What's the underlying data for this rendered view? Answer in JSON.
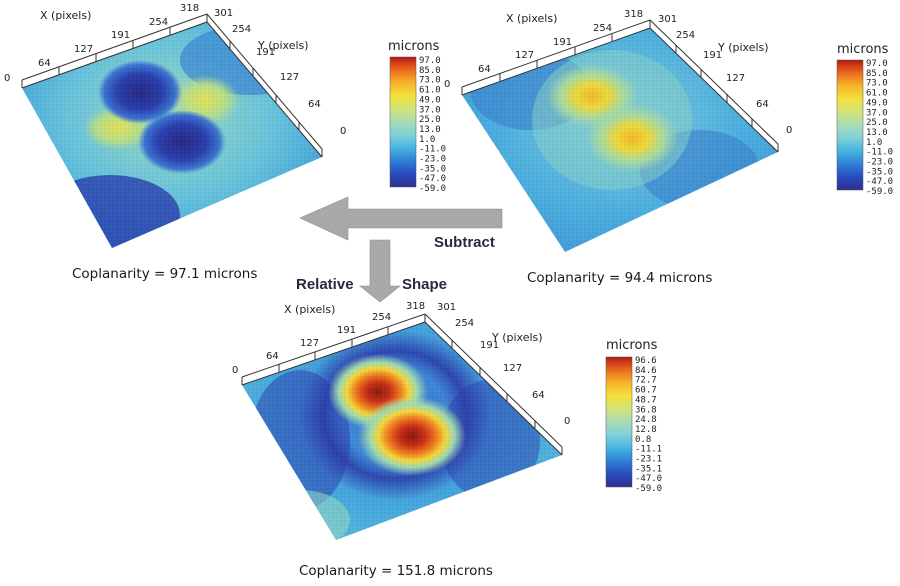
{
  "plots": [
    {
      "id": "top-left",
      "x_axis_title": "X (pixels)",
      "y_axis_title": "Y (pixels)",
      "x_ticks": [
        "0",
        "64",
        "127",
        "191",
        "254",
        "318"
      ],
      "y_ticks": [
        "301",
        "254",
        "191",
        "127",
        "64",
        "0"
      ],
      "colorbar_title": "microns",
      "colorbar_ticks": [
        "97.0",
        "85.0",
        "73.0",
        "61.0",
        "49.0",
        "37.0",
        "25.0",
        "13.0",
        "1.0",
        "-11.0",
        "-23.0",
        "-35.0",
        "-47.0",
        "-59.0"
      ],
      "caption": "Coplanarity = 97.1 microns"
    },
    {
      "id": "top-right",
      "x_axis_title": "X (pixels)",
      "y_axis_title": "Y (pixels)",
      "x_ticks": [
        "0",
        "64",
        "127",
        "191",
        "254",
        "318"
      ],
      "y_ticks": [
        "301",
        "254",
        "191",
        "127",
        "64",
        "0"
      ],
      "colorbar_title": "microns",
      "colorbar_ticks": [
        "97.0",
        "85.0",
        "73.0",
        "61.0",
        "49.0",
        "37.0",
        "25.0",
        "13.0",
        "1.0",
        "-11.0",
        "-23.0",
        "-35.0",
        "-47.0",
        "-59.0"
      ],
      "caption": "Coplanarity = 94.4 microns"
    },
    {
      "id": "bottom",
      "x_axis_title": "X (pixels)",
      "y_axis_title": "Y (pixels)",
      "x_ticks": [
        "0",
        "64",
        "127",
        "191",
        "254",
        "318"
      ],
      "y_ticks": [
        "301",
        "254",
        "191",
        "127",
        "64",
        "0"
      ],
      "colorbar_title": "microns",
      "colorbar_ticks": [
        "96.6",
        "84.6",
        "72.7",
        "60.7",
        "48.7",
        "36.8",
        "24.8",
        "12.8",
        "0.8",
        "-11.1",
        "-23.1",
        "-35.1",
        "-47.0",
        "-59.0"
      ],
      "caption": "Coplanarity = 151.8 microns"
    }
  ],
  "labels": {
    "subtract": "Subtract",
    "relative": "Relative",
    "shape": "Shape"
  },
  "colors": {
    "arrow": "#a9a9a9",
    "colormap": [
      "#2b2f8f",
      "#2a4bbd",
      "#2f7fd6",
      "#46b4e3",
      "#7fd1d8",
      "#a8dcb4",
      "#d2e37a",
      "#f2e23a",
      "#f7b52a",
      "#ee7a1f",
      "#d9411b",
      "#a81c10"
    ]
  }
}
